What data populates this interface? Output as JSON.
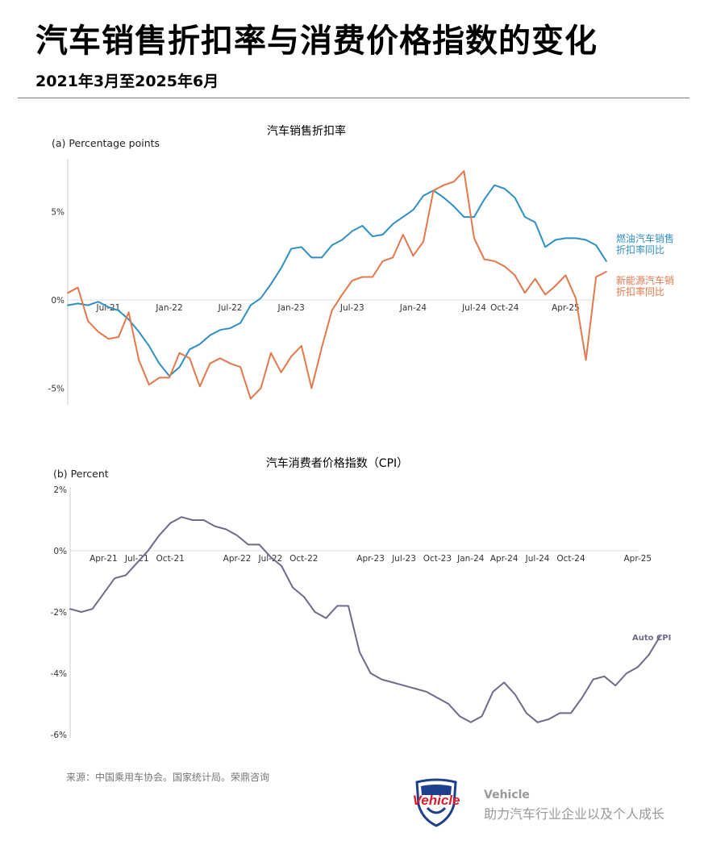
{
  "header": {
    "title": "汽车销售折扣率与消费价格指数的变化",
    "subtitle": "2021年3月至2025年6月"
  },
  "colors": {
    "ice": "#2f8fc1",
    "nev": "#e2784b",
    "cpi": "#6f6a8c",
    "axis": "#cccccc",
    "text": "#333333"
  },
  "footer": {
    "source": "来源：中国乘用车协会。国家统计局。荣鼎咨询",
    "brand_logo_text": "Vehicle",
    "brand_name": "Vehicle",
    "brand_tagline": "助力汽车行业企业以及个人成长"
  },
  "chart_data": [
    {
      "type": "line",
      "title": "汽车销售折扣率",
      "ylabel": "(a) Percentage points",
      "ylim": [
        -6,
        8
      ],
      "yticks": [
        {
          "v": 5,
          "label": "5%"
        },
        {
          "v": 0,
          "label": "0%"
        },
        {
          "v": -5,
          "label": "-5%"
        }
      ],
      "xticks": [
        {
          "i": 4,
          "label": "Jul-21"
        },
        {
          "i": 10,
          "label": "Jan-22"
        },
        {
          "i": 16,
          "label": "Jul-22"
        },
        {
          "i": 22,
          "label": "Jan-23"
        },
        {
          "i": 28,
          "label": "Jul-23"
        },
        {
          "i": 34,
          "label": "Jan-24"
        },
        {
          "i": 40,
          "label": "Jul-24"
        },
        {
          "i": 43,
          "label": "Oct-24"
        },
        {
          "i": 49,
          "label": "Apr-25"
        }
      ],
      "series": [
        {
          "name": "燃油汽车销售折扣率同比",
          "label_lines": [
            "燃油汽车销售",
            "折扣率同比"
          ],
          "x_start": 0,
          "values": [
            -0.3,
            -0.2,
            -0.3,
            -0.1,
            -0.4,
            -0.6,
            -1.1,
            -1.8,
            -2.6,
            -3.6,
            -4.3,
            -3.8,
            -2.8,
            -2.5,
            -2.0,
            -1.7,
            -1.6,
            -1.3,
            -0.3,
            0.1,
            0.9,
            1.8,
            2.9,
            3.0,
            2.4,
            2.4,
            3.1,
            3.4,
            3.9,
            4.2,
            3.6,
            3.7,
            4.3,
            4.7,
            5.1,
            5.9,
            6.2,
            5.8,
            5.3,
            4.7,
            4.7,
            5.7,
            6.5,
            6.3,
            5.8,
            4.7,
            4.4,
            3.0,
            3.4,
            3.5,
            3.5,
            3.4,
            3.1,
            2.2
          ]
        },
        {
          "name": "新能源汽车销售折扣率同比",
          "label_lines": [
            "新能源汽车销",
            "折扣率同比"
          ],
          "x_start": 0,
          "values": [
            0.4,
            0.7,
            -1.2,
            -1.8,
            -2.2,
            -2.1,
            -0.7,
            -3.4,
            -4.8,
            -4.4,
            -4.4,
            -3.0,
            -3.3,
            -4.9,
            -3.6,
            -3.3,
            -3.6,
            -3.8,
            -5.6,
            -5.0,
            -3.0,
            -4.1,
            -3.2,
            -2.6,
            -5.0,
            -2.7,
            -0.6,
            0.3,
            1.1,
            1.3,
            1.3,
            2.2,
            2.4,
            3.7,
            2.5,
            3.3,
            6.2,
            6.5,
            6.7,
            7.3,
            3.5,
            2.3,
            2.2,
            1.9,
            1.4,
            0.4,
            1.2,
            0.3,
            0.8,
            1.4,
            0.1,
            -3.4,
            1.3,
            1.6
          ]
        }
      ]
    },
    {
      "type": "line",
      "title": "汽车消费者价格指数（CPI）",
      "ylabel": "(b) Percent",
      "ylim": [
        -6,
        2
      ],
      "yticks": [
        {
          "v": 2,
          "label": "2%"
        },
        {
          "v": 0,
          "label": "0%"
        },
        {
          "v": -2,
          "label": "-2%"
        },
        {
          "v": -4,
          "label": "-4%"
        },
        {
          "v": -6,
          "label": "-6%"
        }
      ],
      "xticks": [
        {
          "i": 3,
          "label": "Apr-21"
        },
        {
          "i": 6,
          "label": "Jul-21"
        },
        {
          "i": 9,
          "label": "Oct-21"
        },
        {
          "i": 15,
          "label": "Apr-22"
        },
        {
          "i": 18,
          "label": "Jul-22"
        },
        {
          "i": 21,
          "label": "Oct-22"
        },
        {
          "i": 27,
          "label": "Apr-23"
        },
        {
          "i": 30,
          "label": "Jul-23"
        },
        {
          "i": 33,
          "label": "Oct-23"
        },
        {
          "i": 36,
          "label": "Jan-24"
        },
        {
          "i": 39,
          "label": "Apr-24"
        },
        {
          "i": 42,
          "label": "Jul-24"
        },
        {
          "i": 45,
          "label": "Oct-24"
        },
        {
          "i": 51,
          "label": "Apr-25"
        }
      ],
      "series": [
        {
          "name": "Auto CPI",
          "label_lines": [
            "Auto CPI"
          ],
          "x_start": 0,
          "values": [
            -1.9,
            -2.0,
            -1.9,
            -1.4,
            -0.9,
            -0.8,
            -0.4,
            0.0,
            0.5,
            0.9,
            1.1,
            1.0,
            1.0,
            0.8,
            0.7,
            0.5,
            0.2,
            0.2,
            -0.2,
            -0.5,
            -1.2,
            -1.5,
            -2.0,
            -2.2,
            -1.8,
            -1.8,
            -3.3,
            -4.0,
            -4.2,
            -4.3,
            -4.4,
            -4.5,
            -4.6,
            -4.8,
            -5.0,
            -5.4,
            -5.6,
            -5.4,
            -4.6,
            -4.3,
            -4.7,
            -5.3,
            -5.6,
            -5.5,
            -5.3,
            -5.3,
            -4.8,
            -4.2,
            -4.1,
            -4.4,
            -4.0,
            -3.8,
            -3.4,
            -2.8
          ]
        }
      ]
    }
  ]
}
